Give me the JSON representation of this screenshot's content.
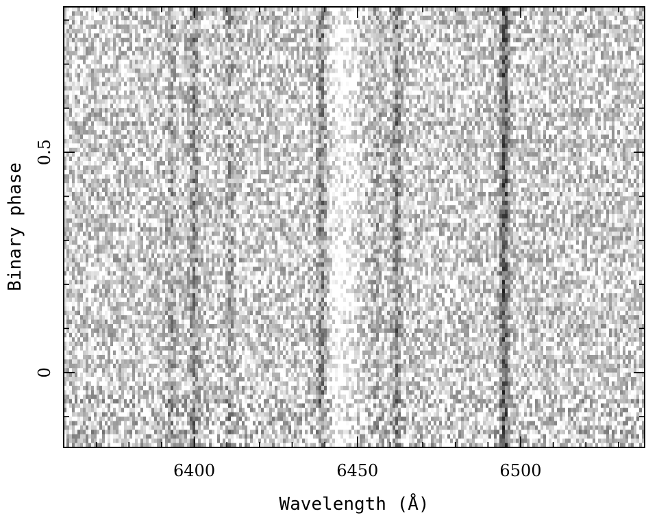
{
  "chart_data": {
    "type": "heatmap",
    "title": "",
    "xlabel": "Wavelength (Å)",
    "ylabel": "Binary phase",
    "xlim": [
      6360,
      6538
    ],
    "ylim": [
      -0.17,
      0.83
    ],
    "x_ticks_major": [
      6400,
      6450,
      6500
    ],
    "x_tick_labels": [
      "6400",
      "6450",
      "6500"
    ],
    "x_ticks_minor_step": 10,
    "y_ticks_major": [
      0,
      0.5
    ],
    "y_tick_labels": [
      "0",
      "0.5"
    ],
    "y_ticks_minor_step": 0.1,
    "colormap": "grayscale (dark = absorption)",
    "grid": false,
    "absorption_lines": [
      {
        "wavelength": 6393,
        "strength": 0.3
      },
      {
        "wavelength": 6400,
        "strength": 0.45
      },
      {
        "wavelength": 6411,
        "strength": 0.3
      },
      {
        "wavelength": 6439,
        "strength": 0.55
      },
      {
        "wavelength": 6456,
        "strength": 0.2
      },
      {
        "wavelength": 6462,
        "strength": 0.5
      },
      {
        "wavelength": 6495,
        "strength": 0.85
      }
    ],
    "bright_bands": [
      {
        "wavelength": 6444,
        "strength": 0.2
      },
      {
        "wavelength": 6448,
        "strength": 0.15
      }
    ],
    "noisy_rows_phase_range": [
      -0.17,
      -0.05
    ]
  }
}
